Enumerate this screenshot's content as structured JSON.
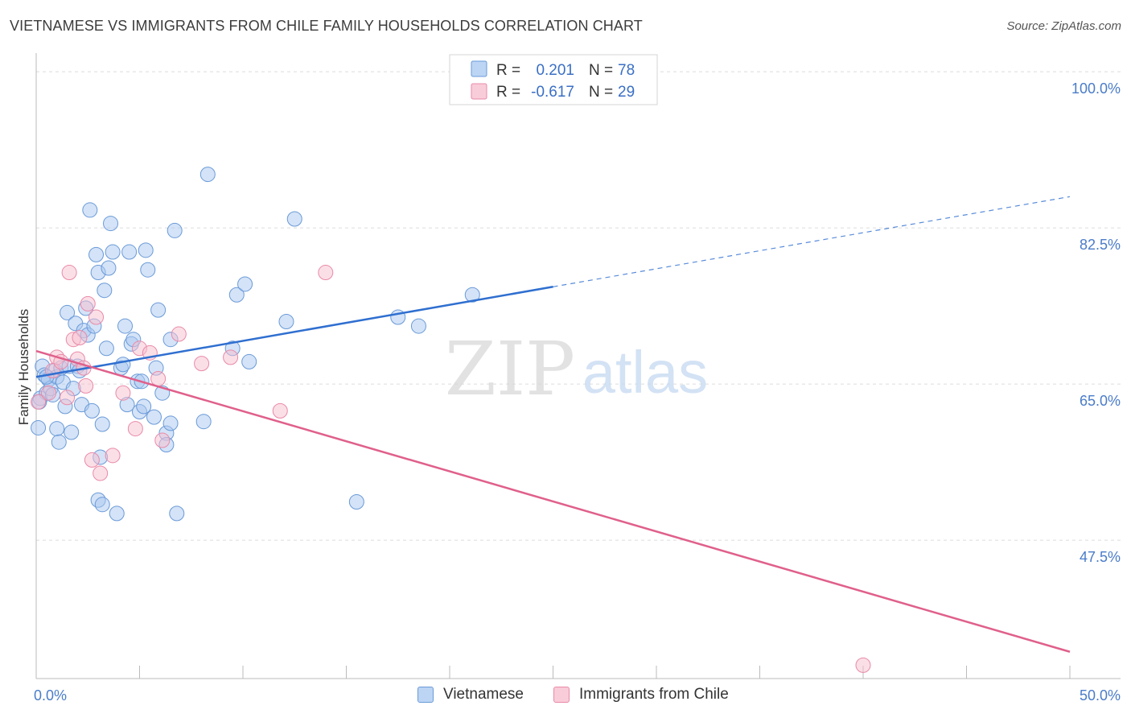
{
  "chart_data": {
    "type": "scatter",
    "title": "VIETNAMESE VS IMMIGRANTS FROM CHILE FAMILY HOUSEHOLDS CORRELATION CHART",
    "source": "Source: ZipAtlas.com",
    "watermark": {
      "zip": "ZIP",
      "atlas": "atlas"
    },
    "xlabel": "",
    "ylabel": "Family Households",
    "xlim": [
      0,
      50
    ],
    "ylim": [
      32,
      101
    ],
    "x_tick_labels": {
      "min": "0.0%",
      "max": "50.0%"
    },
    "y_ticks": [
      {
        "value": 100,
        "label": "100.0%"
      },
      {
        "value": 82.5,
        "label": "82.5%"
      },
      {
        "value": 65,
        "label": "65.0%"
      },
      {
        "value": 47.5,
        "label": "47.5%"
      }
    ],
    "legend": [
      {
        "r_label": "R =",
        "r_value": "0.201",
        "n_label": "N =",
        "n_value": "78"
      },
      {
        "r_label": "R =",
        "r_value": "-0.617",
        "n_label": "N =",
        "n_value": "29"
      }
    ],
    "series": [
      {
        "name": "Vietnamese",
        "color": "#a9c8ef",
        "edge": "#6a9ad8",
        "trend_color": "#2f6fd0",
        "trend": {
          "x0": 0,
          "y0": 65.8,
          "x1": 25,
          "y1": 75.9,
          "x_dash_end": 50
        },
        "points": [
          [
            0.1,
            60.1
          ],
          [
            0.2,
            63.4
          ],
          [
            0.3,
            67.0
          ],
          [
            0.4,
            66.0
          ],
          [
            0.5,
            64.0
          ],
          [
            0.6,
            65.5
          ],
          [
            0.7,
            64.5
          ],
          [
            0.8,
            63.8
          ],
          [
            0.9,
            66.5
          ],
          [
            1.0,
            65.8
          ],
          [
            1.0,
            60.0
          ],
          [
            1.1,
            58.5
          ],
          [
            1.2,
            66.8
          ],
          [
            1.3,
            65.2
          ],
          [
            1.4,
            62.5
          ],
          [
            1.5,
            73.0
          ],
          [
            1.6,
            67.0
          ],
          [
            1.7,
            59.6
          ],
          [
            1.8,
            64.5
          ],
          [
            1.9,
            71.8
          ],
          [
            2.0,
            67.0
          ],
          [
            2.1,
            66.5
          ],
          [
            2.2,
            62.7
          ],
          [
            2.3,
            71.0
          ],
          [
            2.4,
            73.5
          ],
          [
            2.5,
            70.5
          ],
          [
            2.6,
            84.5
          ],
          [
            2.7,
            62.0
          ],
          [
            2.8,
            71.5
          ],
          [
            2.9,
            79.5
          ],
          [
            3.0,
            77.5
          ],
          [
            3.1,
            56.8
          ],
          [
            3.2,
            60.5
          ],
          [
            3.3,
            75.5
          ],
          [
            3.4,
            69.0
          ],
          [
            3.5,
            78.0
          ],
          [
            3.6,
            83.0
          ],
          [
            3.7,
            79.8
          ],
          [
            3.0,
            52.0
          ],
          [
            3.2,
            51.5
          ],
          [
            3.9,
            50.5
          ],
          [
            4.1,
            66.8
          ],
          [
            4.2,
            67.2
          ],
          [
            4.3,
            71.5
          ],
          [
            4.4,
            62.7
          ],
          [
            4.5,
            79.8
          ],
          [
            4.6,
            69.5
          ],
          [
            4.7,
            70.0
          ],
          [
            4.9,
            65.3
          ],
          [
            5.0,
            61.9
          ],
          [
            5.1,
            65.3
          ],
          [
            5.2,
            62.5
          ],
          [
            5.3,
            80.0
          ],
          [
            5.4,
            77.8
          ],
          [
            5.7,
            61.3
          ],
          [
            5.8,
            66.8
          ],
          [
            5.9,
            73.3
          ],
          [
            6.1,
            64.0
          ],
          [
            6.3,
            59.5
          ],
          [
            6.3,
            58.2
          ],
          [
            6.5,
            60.6
          ],
          [
            6.5,
            70.0
          ],
          [
            6.7,
            82.2
          ],
          [
            6.8,
            50.5
          ],
          [
            8.1,
            60.8
          ],
          [
            8.3,
            88.5
          ],
          [
            9.5,
            69.0
          ],
          [
            9.7,
            75.0
          ],
          [
            10.1,
            76.2
          ],
          [
            10.3,
            67.5
          ],
          [
            12.1,
            72.0
          ],
          [
            12.5,
            83.5
          ],
          [
            15.5,
            51.8
          ],
          [
            17.5,
            72.5
          ],
          [
            18.5,
            71.5
          ],
          [
            21.1,
            75.0
          ],
          [
            0.15,
            63.0
          ],
          [
            0.5,
            65.8
          ]
        ]
      },
      {
        "name": "Immigrants from Chile",
        "color": "#f7bfd0",
        "edge": "#e98aa8",
        "trend_color": "#e0608b",
        "trend": {
          "x0": 0,
          "y0": 68.7,
          "x1": 50,
          "y1": 35.0
        },
        "points": [
          [
            0.1,
            63.0
          ],
          [
            0.6,
            64.0
          ],
          [
            0.8,
            66.5
          ],
          [
            1.0,
            68.0
          ],
          [
            1.2,
            67.5
          ],
          [
            1.5,
            63.5
          ],
          [
            1.6,
            77.5
          ],
          [
            1.8,
            70.0
          ],
          [
            2.0,
            67.8
          ],
          [
            2.1,
            70.2
          ],
          [
            2.3,
            66.8
          ],
          [
            2.4,
            64.8
          ],
          [
            2.5,
            74.0
          ],
          [
            2.7,
            56.5
          ],
          [
            2.9,
            72.5
          ],
          [
            3.1,
            55.0
          ],
          [
            3.7,
            57.0
          ],
          [
            4.2,
            64.0
          ],
          [
            4.8,
            60.0
          ],
          [
            5.0,
            69.0
          ],
          [
            5.5,
            68.5
          ],
          [
            5.9,
            65.6
          ],
          [
            6.1,
            58.7
          ],
          [
            6.9,
            70.6
          ],
          [
            8.0,
            67.3
          ],
          [
            9.4,
            68.0
          ],
          [
            11.8,
            62.0
          ],
          [
            14.0,
            77.5
          ],
          [
            40.0,
            33.5
          ]
        ]
      }
    ]
  }
}
